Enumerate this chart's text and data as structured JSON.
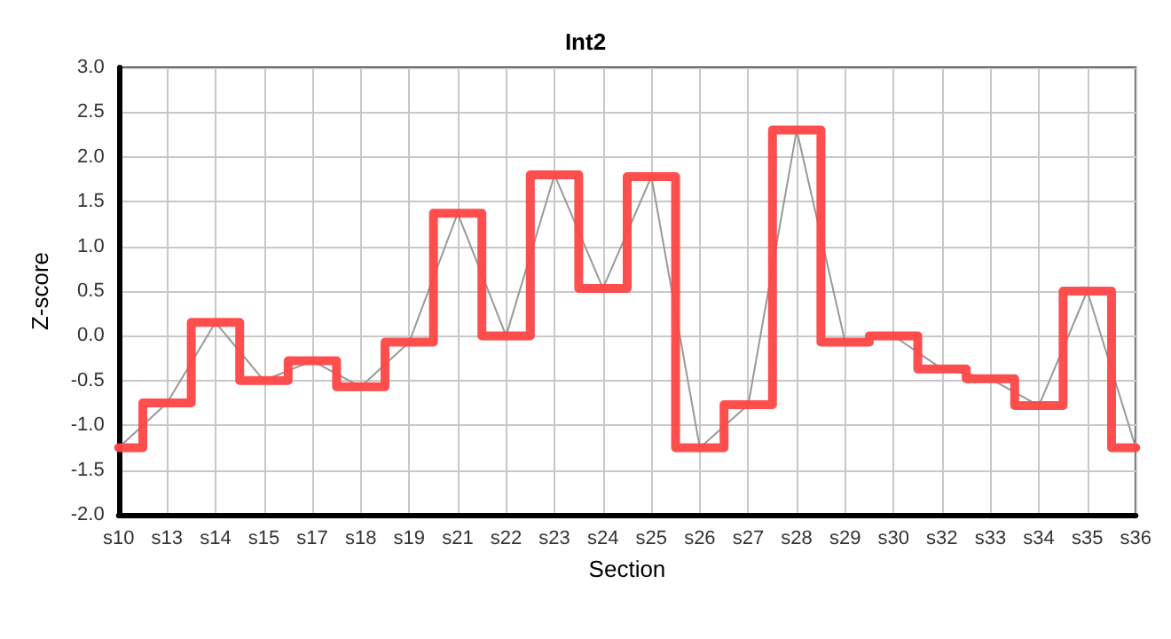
{
  "chart_data": {
    "type": "line",
    "title": "Int2",
    "xlabel": "Section",
    "ylabel": "Z-score",
    "categories": [
      "s10",
      "s13",
      "s14",
      "s15",
      "s17",
      "s18",
      "s19",
      "s21",
      "s22",
      "s23",
      "s24",
      "s25",
      "s26",
      "s27",
      "s28",
      "s29",
      "s30",
      "s32",
      "s33",
      "s34",
      "s35",
      "s36"
    ],
    "series": [
      {
        "type": "line",
        "color": "#999999",
        "values": [
          -1.25,
          -0.75,
          0.15,
          -0.5,
          -0.28,
          -0.57,
          -0.07,
          1.37,
          0.0,
          1.8,
          0.53,
          1.78,
          -1.25,
          -0.77,
          2.3,
          -0.07,
          0.0,
          -0.37,
          -0.48,
          -0.78,
          0.5,
          -1.25
        ]
      },
      {
        "type": "step",
        "color": "#ff4444",
        "values": [
          -1.25,
          -0.75,
          0.15,
          -0.5,
          -0.28,
          -0.57,
          -0.07,
          1.37,
          0.0,
          1.8,
          0.53,
          1.78,
          -1.25,
          -0.77,
          2.3,
          -0.07,
          0.0,
          -0.37,
          -0.48,
          -0.78,
          0.5,
          -1.25
        ]
      }
    ],
    "ylim": [
      -2.0,
      3.0
    ],
    "yticks": [
      {
        "value": -2,
        "label": "-2.0"
      },
      -1.5,
      {
        "value": -1,
        "label": "-1.0"
      },
      -0.5,
      {
        "value": 0,
        "label": "0.0"
      },
      0.5,
      {
        "value": 1,
        "label": "1.0"
      },
      1.5,
      {
        "value": 2,
        "label": "2.0"
      },
      2.5,
      {
        "value": 3,
        "label": "3.0"
      }
    ],
    "grid": true,
    "marker": "none"
  }
}
